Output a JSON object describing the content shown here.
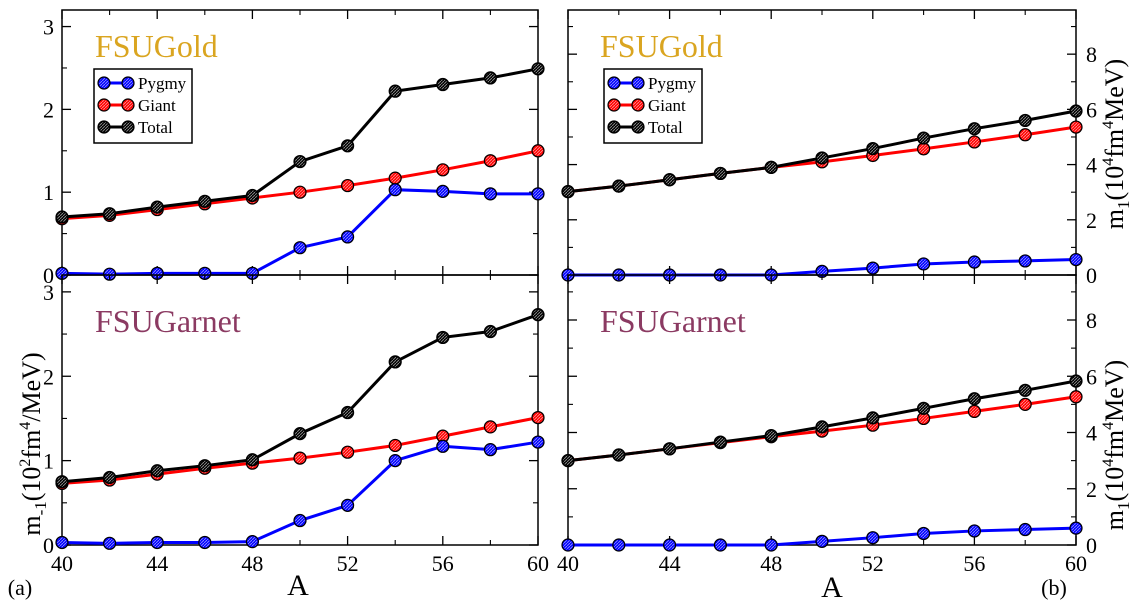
{
  "figure": {
    "panel_labels": [
      "(a)",
      "(b)"
    ],
    "xlabel": "A",
    "ylabel_left": "m-1(10²fm⁴/MeV)",
    "ylabel_right": "m1(10⁴fm⁴MeV)"
  },
  "chart_data": [
    {
      "type": "line",
      "title": "FSUGold",
      "title_color": "#DAA520",
      "legend": true,
      "legend_position": "upper-left",
      "x": [
        40,
        42,
        44,
        46,
        48,
        50,
        52,
        54,
        56,
        58,
        60
      ],
      "xlim": [
        40,
        60
      ],
      "ylim": [
        0,
        3.2
      ],
      "xticks": [
        40,
        44,
        48,
        52,
        56,
        60
      ],
      "yticks": [
        0,
        1,
        2,
        3
      ],
      "series": [
        {
          "name": "Pygmy",
          "color": "#0000ff",
          "values": [
            0.02,
            0.01,
            0.02,
            0.02,
            0.02,
            0.33,
            0.46,
            1.03,
            1.01,
            0.98,
            0.98
          ]
        },
        {
          "name": "Giant",
          "color": "#ff0000",
          "values": [
            0.68,
            0.72,
            0.79,
            0.86,
            0.93,
            1.0,
            1.08,
            1.17,
            1.27,
            1.38,
            1.5
          ]
        },
        {
          "name": "Total",
          "color": "#000000",
          "values": [
            0.7,
            0.74,
            0.82,
            0.89,
            0.96,
            1.37,
            1.56,
            2.22,
            2.3,
            2.38,
            2.49
          ]
        }
      ]
    },
    {
      "type": "line",
      "title": "FSUGold",
      "title_color": "#DAA520",
      "legend": true,
      "legend_position": "upper-left",
      "x": [
        40,
        42,
        44,
        46,
        48,
        50,
        52,
        54,
        56,
        58,
        60
      ],
      "xlim": [
        40,
        60
      ],
      "ylim": [
        0,
        9.6
      ],
      "xticks": [
        40,
        44,
        48,
        52,
        56,
        60
      ],
      "yticks": [
        0,
        2,
        4,
        6,
        8
      ],
      "series": [
        {
          "name": "Pygmy",
          "color": "#0000ff",
          "values": [
            0.0,
            0.0,
            0.0,
            0.0,
            0.0,
            0.13,
            0.25,
            0.4,
            0.47,
            0.51,
            0.56
          ]
        },
        {
          "name": "Giant",
          "color": "#ff0000",
          "values": [
            3.02,
            3.22,
            3.45,
            3.68,
            3.9,
            4.1,
            4.33,
            4.57,
            4.82,
            5.08,
            5.36
          ]
        },
        {
          "name": "Total",
          "color": "#000000",
          "values": [
            3.02,
            3.22,
            3.45,
            3.68,
            3.9,
            4.24,
            4.58,
            4.96,
            5.3,
            5.6,
            5.94
          ]
        }
      ]
    },
    {
      "type": "line",
      "title": "FSUGarnet",
      "title_color": "#8B3A62",
      "legend": false,
      "x": [
        40,
        42,
        44,
        46,
        48,
        50,
        52,
        54,
        56,
        58,
        60
      ],
      "xlim": [
        40,
        60
      ],
      "xlabel": "A",
      "ylim": [
        0,
        3.2
      ],
      "xticks": [
        40,
        44,
        48,
        52,
        56,
        60
      ],
      "yticks": [
        0,
        1,
        2,
        3
      ],
      "series": [
        {
          "name": "Pygmy",
          "color": "#0000ff",
          "values": [
            0.03,
            0.02,
            0.03,
            0.03,
            0.04,
            0.29,
            0.47,
            1.0,
            1.17,
            1.13,
            1.22
          ]
        },
        {
          "name": "Giant",
          "color": "#ff0000",
          "values": [
            0.73,
            0.77,
            0.84,
            0.91,
            0.97,
            1.03,
            1.1,
            1.18,
            1.29,
            1.4,
            1.51
          ]
        },
        {
          "name": "Total",
          "color": "#000000",
          "values": [
            0.75,
            0.8,
            0.88,
            0.94,
            1.01,
            1.32,
            1.57,
            2.17,
            2.46,
            2.53,
            2.73
          ]
        }
      ]
    },
    {
      "type": "line",
      "title": "FSUGarnet",
      "title_color": "#8B3A62",
      "legend": false,
      "x": [
        40,
        42,
        44,
        46,
        48,
        50,
        52,
        54,
        56,
        58,
        60
      ],
      "xlim": [
        40,
        60
      ],
      "xlabel": "A",
      "ylim": [
        0,
        9.6
      ],
      "xticks": [
        40,
        44,
        48,
        52,
        56,
        60
      ],
      "yticks": [
        0,
        2,
        4,
        6,
        8
      ],
      "series": [
        {
          "name": "Pygmy",
          "color": "#0000ff",
          "values": [
            0.0,
            0.0,
            0.0,
            0.0,
            0.0,
            0.13,
            0.26,
            0.41,
            0.5,
            0.55,
            0.6
          ]
        },
        {
          "name": "Giant",
          "color": "#ff0000",
          "values": [
            3.0,
            3.2,
            3.42,
            3.64,
            3.85,
            4.05,
            4.26,
            4.5,
            4.75,
            5.0,
            5.27
          ]
        },
        {
          "name": "Total",
          "color": "#000000",
          "values": [
            3.0,
            3.2,
            3.42,
            3.66,
            3.89,
            4.2,
            4.52,
            4.86,
            5.2,
            5.5,
            5.83
          ]
        }
      ]
    }
  ]
}
